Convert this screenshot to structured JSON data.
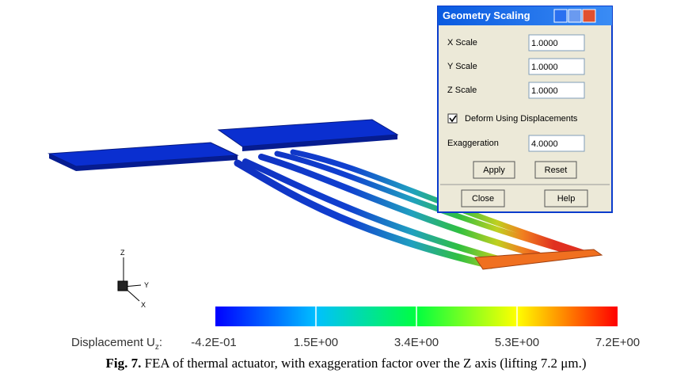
{
  "dialog": {
    "title": "Geometry Scaling",
    "fields": [
      {
        "label": "X Scale",
        "value": "1.0000"
      },
      {
        "label": "Y Scale",
        "value": "1.0000"
      },
      {
        "label": "Z Scale",
        "value": "1.0000"
      }
    ],
    "checkbox": "Deform Using Displacements",
    "exaggeration": {
      "label": "Exaggeration",
      "value": "4.0000"
    },
    "buttons": [
      "Apply",
      "Reset",
      "Close",
      "Help"
    ]
  },
  "axes_triad": [
    "Z",
    "Y",
    "X"
  ],
  "colorbar": {
    "label": "Displacement U",
    "subscript": "z",
    "suffix": ":",
    "ticks": [
      "-4.2E-01",
      "1.5E+00",
      "3.4E+00",
      "5.3E+00",
      "7.2E+00"
    ]
  },
  "caption": {
    "label": "Fig. 7.",
    "text": "FEA of thermal actuator, with exaggeration factor over the Z axis (lifting 7.2 μm.)"
  }
}
